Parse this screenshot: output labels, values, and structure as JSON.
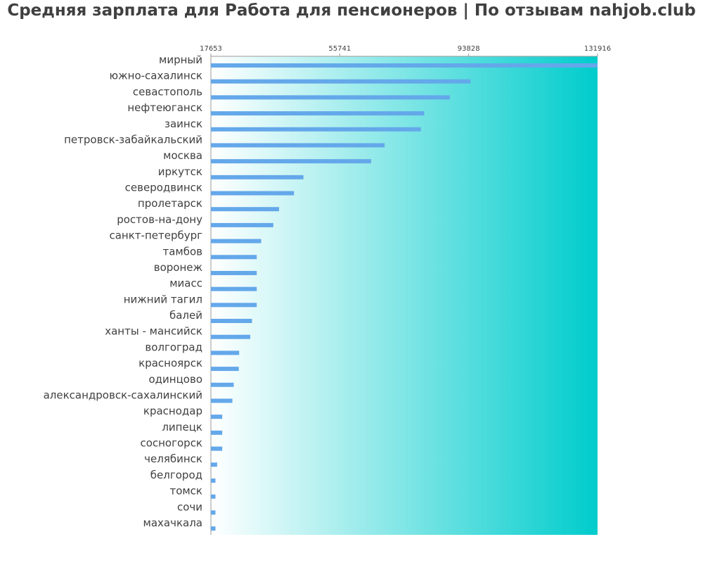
{
  "chart_data": {
    "type": "bar",
    "orientation": "horizontal",
    "title": "Средняя зарплата для Работа для пенсионеров | По отзывам nahjob.club",
    "xlabel": "",
    "ylabel": "",
    "xlim": [
      17653,
      131916
    ],
    "x_ticks": [
      "17653",
      "55741",
      "93828",
      "131916"
    ],
    "grid": false,
    "background": "gradient white to teal",
    "colors": {
      "bar": "#64a8ea",
      "gradient_start": "#ffffff",
      "gradient_end": "#00cccc",
      "text": "#404040"
    },
    "categories": [
      "мирный",
      "южно-сахалинск",
      "севастополь",
      "нефтеюганск",
      "заинск",
      "петровск-забайкальский",
      "москва",
      "иркутск",
      "северодвинск",
      "пролетарск",
      "ростов-на-дону",
      "санкт-петербург",
      "тамбов",
      "воронеж",
      "миасс",
      "нижний тагил",
      "балей",
      "ханты - мансийск",
      "волгоград",
      "красноярск",
      "одинцово",
      "александровск-сахалинский",
      "краснодар",
      "липецк",
      "сосногорск",
      "челябинск",
      "белгород",
      "томск",
      "сочи",
      "махачкала"
    ],
    "values": [
      131916,
      94400,
      88300,
      80700,
      79700,
      69000,
      65000,
      45000,
      42200,
      37800,
      36100,
      32500,
      31200,
      31200,
      31200,
      31200,
      29800,
      29300,
      26000,
      25900,
      24400,
      24000,
      21000,
      21000,
      21000,
      19500,
      19000,
      19000,
      19000,
      19000
    ]
  }
}
